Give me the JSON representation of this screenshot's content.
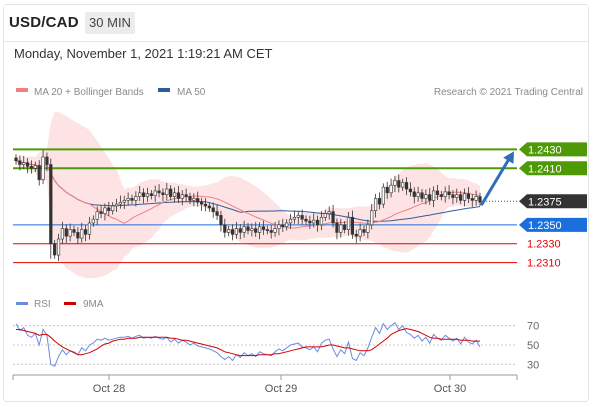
{
  "header": {
    "symbol": "USD/CAD",
    "timeframe": "30 MIN",
    "datetime": "Monday, November 1, 2021 1:19:21 AM CET"
  },
  "colors": {
    "resistance": "#4e9a06",
    "current": "#333333",
    "pivot": "#1a6fdc",
    "support": "#e60000",
    "ma20": "#f08080",
    "band_fill": "#fcdada",
    "ma50": "#2f5d9a",
    "rsi": "#6c8be0",
    "rsi_ma": "#d10000",
    "arrow": "#2f6fb8"
  },
  "chart_data": [
    {
      "type": "candlestick",
      "title": "",
      "legend": {
        "position": "top-left",
        "entries": [
          "MA 20 + Bollinger Bands",
          "MA 50"
        ]
      },
      "credit": "Research © 2021 Trading Central",
      "x_ticks": [
        "Oct 28",
        "Oct 29",
        "Oct 30"
      ],
      "y_range": [
        1.23,
        1.244
      ],
      "levels": [
        {
          "label": "1.2430",
          "value": 1.243,
          "role": "resistance"
        },
        {
          "label": "1.2410",
          "value": 1.241,
          "role": "resistance"
        },
        {
          "label": "1.2375",
          "value": 1.2375,
          "role": "current"
        },
        {
          "label": "1.2350",
          "value": 1.235,
          "role": "pivot"
        },
        {
          "label": "1.2330",
          "value": 1.233,
          "role": "support"
        },
        {
          "label": "1.2310",
          "value": 1.231,
          "role": "support"
        }
      ],
      "forecast_arrow": {
        "from": 1.2372,
        "to": 1.2428
      },
      "series": {
        "close": [
          1.2418,
          1.2414,
          1.2416,
          1.2412,
          1.241,
          1.2413,
          1.2398,
          1.2422,
          1.2414,
          1.233,
          1.2318,
          1.2335,
          1.2346,
          1.2338,
          1.2345,
          1.2342,
          1.2336,
          1.2345,
          1.234,
          1.2352,
          1.2356,
          1.2364,
          1.2362,
          1.2368,
          1.2365,
          1.237,
          1.2372,
          1.2374,
          1.2376,
          1.2378,
          1.2376,
          1.238,
          1.2384,
          1.238,
          1.2383,
          1.2381,
          1.2386,
          1.2384,
          1.2382,
          1.2388,
          1.238,
          1.2384,
          1.2378,
          1.2382,
          1.238,
          1.2376,
          1.2378,
          1.2374,
          1.2372,
          1.237,
          1.2368,
          1.2364,
          1.236,
          1.235,
          1.2342,
          1.2345,
          1.234,
          1.2346,
          1.2342,
          1.2348,
          1.2344,
          1.2346,
          1.2342,
          1.2348,
          1.2345,
          1.2344,
          1.2342,
          1.2346,
          1.235,
          1.2348,
          1.2352,
          1.2356,
          1.2358,
          1.236,
          1.2356,
          1.2354,
          1.2352,
          1.2355,
          1.235,
          1.2358,
          1.2362,
          1.2364,
          1.2352,
          1.2342,
          1.235,
          1.2345,
          1.2358,
          1.234,
          1.2338,
          1.2345,
          1.2342,
          1.235,
          1.2365,
          1.2378,
          1.2372,
          1.239,
          1.2384,
          1.2392,
          1.2397,
          1.239,
          1.2395,
          1.2388,
          1.2385,
          1.238,
          1.2384,
          1.2378,
          1.2382,
          1.2376,
          1.2386,
          1.2382,
          1.238,
          1.2385,
          1.2382,
          1.2379,
          1.2382,
          1.2376,
          1.2383,
          1.2378,
          1.2376,
          1.238,
          1.2374
        ]
      }
    },
    {
      "type": "line",
      "legend": {
        "position": "top-left",
        "entries": [
          "RSI",
          "9MA"
        ]
      },
      "y_ticks": [
        70,
        50,
        30
      ],
      "y_range": [
        20,
        80
      ],
      "series": [
        {
          "name": "RSI",
          "values": [
            72,
            65,
            68,
            60,
            58,
            62,
            50,
            66,
            60,
            30,
            28,
            38,
            45,
            40,
            44,
            43,
            40,
            47,
            44,
            50,
            52,
            56,
            55,
            57,
            55,
            56,
            57,
            58,
            58,
            59,
            57,
            59,
            60,
            57,
            58,
            57,
            59,
            57,
            56,
            58,
            53,
            56,
            52,
            55,
            53,
            50,
            52,
            49,
            48,
            47,
            46,
            44,
            42,
            38,
            35,
            38,
            34,
            40,
            37,
            42,
            39,
            41,
            38,
            43,
            41,
            40,
            39,
            43,
            46,
            44,
            47,
            50,
            51,
            52,
            48,
            47,
            45,
            48,
            43,
            52,
            55,
            56,
            46,
            38,
            45,
            41,
            53,
            36,
            34,
            42,
            39,
            47,
            58,
            68,
            62,
            72,
            66,
            70,
            73,
            66,
            70,
            63,
            61,
            57,
            60,
            54,
            58,
            52,
            61,
            57,
            55,
            60,
            57,
            54,
            57,
            51,
            58,
            53,
            51,
            55,
            48
          ]
        },
        {
          "name": "9MA",
          "values": [
            66,
            66,
            65,
            64,
            63,
            62,
            60,
            61,
            61,
            58,
            54,
            51,
            48,
            46,
            44,
            42,
            40,
            40,
            41,
            42,
            44,
            46,
            49,
            51,
            52,
            54,
            55,
            56,
            56,
            57,
            57,
            57,
            58,
            58,
            58,
            58,
            58,
            58,
            58,
            58,
            57,
            57,
            56,
            55,
            55,
            54,
            53,
            52,
            51,
            50,
            49,
            48,
            47,
            45,
            43,
            42,
            41,
            40,
            39,
            39,
            39,
            39,
            39,
            40,
            40,
            40,
            40,
            41,
            41,
            42,
            43,
            44,
            45,
            46,
            47,
            48,
            48,
            48,
            48,
            48,
            49,
            50,
            50,
            49,
            48,
            47,
            47,
            46,
            45,
            44,
            44,
            44,
            45,
            48,
            51,
            54,
            57,
            61,
            63,
            65,
            66,
            67,
            66,
            65,
            64,
            62,
            60,
            58,
            57,
            57,
            56,
            56,
            56,
            56,
            56,
            55,
            55,
            55,
            54,
            54,
            54
          ]
        }
      ]
    }
  ]
}
